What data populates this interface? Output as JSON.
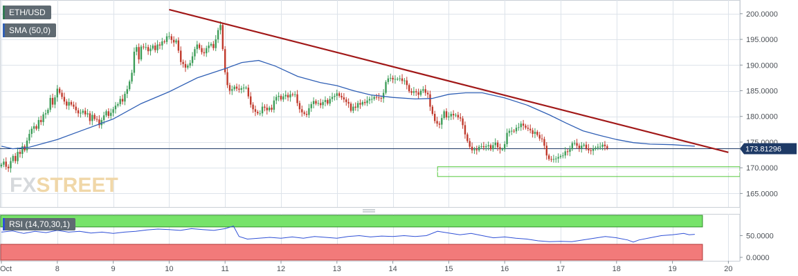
{
  "header": {
    "symbol": "ETH/USD",
    "indicator": "SMA (50,0)",
    "rsi_indicator": "RSI (14,70,30,1)",
    "watermark_fx": "FX",
    "watermark_street": "STREET"
  },
  "colors": {
    "candle_up": "#3d9d59",
    "candle_down": "#c0392b",
    "sma": "#2f5fb5",
    "trendline": "#a11818",
    "support_box": "#54c93a",
    "rsi_line": "#2e4fd6",
    "rsi_overbought": "#77e36a",
    "rsi_oversold": "#f27a7a",
    "price_line": "#1e3a66",
    "grid": "#dde3ea"
  },
  "chart_data": [
    {
      "type": "candlestick",
      "symbol": "ETH/USD",
      "x_ticks": [
        "Oct",
        "8",
        "9",
        "10",
        "11",
        "12",
        "13",
        "14",
        "15",
        "16",
        "17",
        "18",
        "19",
        "20"
      ],
      "y_ticks": [
        "165.0000",
        "170.0000",
        "175.0000",
        "180.0000",
        "185.0000",
        "190.0000",
        "195.0000",
        "200.0000"
      ],
      "ylim": [
        162.5,
        202.8
      ],
      "xlim_days": [
        7.0,
        20.0
      ],
      "current_price": 173.81296,
      "current_price_label": "173.81296",
      "sma": {
        "name": "SMA (50,0)",
        "points": [
          [
            7.0,
            174.2
          ],
          [
            7.2,
            173.7
          ],
          [
            7.5,
            174.0
          ],
          [
            8.0,
            175.5
          ],
          [
            8.5,
            177.5
          ],
          [
            9.0,
            179.5
          ],
          [
            9.5,
            182.5
          ],
          [
            10.0,
            184.8
          ],
          [
            10.5,
            187.5
          ],
          [
            11.0,
            189.3
          ],
          [
            11.3,
            190.5
          ],
          [
            11.6,
            190.9
          ],
          [
            11.9,
            189.8
          ],
          [
            12.3,
            187.8
          ],
          [
            12.7,
            186.6
          ],
          [
            13.0,
            186.0
          ],
          [
            13.3,
            185.0
          ],
          [
            13.6,
            184.2
          ],
          [
            14.0,
            183.7
          ],
          [
            14.4,
            183.4
          ],
          [
            14.7,
            183.5
          ],
          [
            15.0,
            184.3
          ],
          [
            15.3,
            184.6
          ],
          [
            15.6,
            184.6
          ],
          [
            16.0,
            183.6
          ],
          [
            16.4,
            182.2
          ],
          [
            16.8,
            180.3
          ],
          [
            17.1,
            178.7
          ],
          [
            17.4,
            177.2
          ],
          [
            17.7,
            176.3
          ],
          [
            18.0,
            175.5
          ],
          [
            18.3,
            174.9
          ],
          [
            18.6,
            174.6
          ],
          [
            19.0,
            174.5
          ],
          [
            19.4,
            174.2
          ]
        ]
      },
      "candles": {
        "start_day": 7.0,
        "step_days": 0.0416667,
        "closes": [
          170.6,
          171.2,
          170.2,
          169.9,
          171.3,
          172.3,
          171.3,
          173.1,
          172.7,
          174.2,
          173.4,
          175.3,
          176.6,
          177.6,
          178.1,
          177.6,
          179.3,
          178.9,
          180.4,
          180.6,
          181.3,
          183.6,
          182.3,
          183.7,
          185.4,
          184.6,
          183.8,
          182.9,
          182.1,
          182.8,
          182.3,
          181.9,
          181.2,
          180.6,
          180.7,
          181.1,
          180.4,
          180.6,
          179.1,
          180.3,
          179.5,
          179.4,
          178.3,
          179.3,
          180.2,
          181.0,
          180.1,
          180.7,
          181.4,
          182.1,
          182.4,
          183.4,
          182.9,
          184.4,
          185.3,
          186.8,
          188.5,
          192.6,
          193.5,
          191.1,
          193.6,
          193.5,
          193.5,
          192.7,
          193.2,
          193.8,
          192.9,
          194.0,
          193.8,
          194.6,
          194.5,
          195.6,
          195.6,
          194.9,
          194.4,
          194.8,
          192.8,
          190.6,
          190.2,
          189.5,
          189.9,
          190.4,
          191.7,
          193.1,
          194.0,
          193.3,
          192.5,
          192.3,
          193.3,
          193.8,
          194.1,
          193.3,
          195.0,
          196.8,
          197.8,
          193.1,
          188.6,
          186.1,
          185.0,
          185.3,
          185.8,
          185.4,
          185.2,
          185.5,
          185.6,
          185.6,
          183.9,
          182.3,
          181.4,
          180.9,
          180.6,
          180.6,
          181.9,
          181.7,
          181.2,
          181.7,
          181.3,
          183.1,
          183.8,
          184.0,
          183.3,
          183.9,
          184.2,
          183.7,
          184.3,
          184.2,
          184.3,
          182.6,
          181.4,
          180.8,
          180.5,
          180.3,
          181.6,
          182.4,
          183.0,
          182.5,
          182.6,
          182.2,
          182.8,
          183.2,
          182.5,
          183.4,
          183.8,
          184.0,
          184.5,
          184.0,
          183.7,
          183.3,
          182.8,
          182.5,
          181.1,
          181.9,
          181.7,
          182.6,
          182.3,
          182.8,
          182.6,
          183.1,
          183.4,
          183.4,
          183.8,
          183.7,
          183.6,
          183.5,
          184.6,
          186.7,
          187.4,
          187.5,
          187.2,
          187.3,
          187.3,
          187.4,
          186.9,
          187.0,
          186.1,
          184.9,
          184.6,
          184.9,
          184.7,
          184.2,
          185.0,
          185.3,
          184.6,
          184.3,
          181.9,
          180.5,
          179.1,
          178.6,
          178.4,
          179.7,
          181.0,
          179.8,
          180.0,
          180.5,
          180.2,
          180.3,
          179.8,
          179.6,
          178.3,
          176.5,
          175.2,
          174.1,
          173.4,
          173.6,
          173.4,
          174.1,
          174.2,
          174.0,
          174.2,
          174.4,
          173.6,
          174.4,
          174.9,
          174.0,
          173.6,
          173.6,
          174.6,
          176.8,
          177.2,
          177.2,
          177.1,
          177.8,
          177.9,
          178.6,
          178.2,
          177.8,
          177.6,
          177.3,
          176.6,
          177.0,
          176.4,
          175.7,
          175.6,
          174.3,
          172.4,
          171.7,
          171.6,
          171.7,
          171.8,
          172.1,
          172.3,
          172.4,
          173.2,
          173.1,
          173.6,
          174.8,
          174.8,
          174.3,
          173.8,
          174.3,
          174.5,
          173.8,
          173.4,
          173.3,
          173.7,
          173.9,
          174.1,
          174.1,
          174.5,
          174.2,
          173.8
        ]
      },
      "trendline": {
        "start": [
          10.0,
          200.8
        ],
        "end": [
          20.0,
          173.0
        ]
      },
      "support_zone": {
        "x_start_day": 14.8,
        "y_range": [
          168.3,
          170.2
        ]
      }
    },
    {
      "type": "line",
      "name": "RSI (14,70,30,1)",
      "y_ticks": [
        "0.0000",
        "50.0000"
      ],
      "ylim": [
        -8,
        100
      ],
      "overbought": 70,
      "oversold": 30,
      "points": [
        [
          7.0,
          58
        ],
        [
          7.2,
          61
        ],
        [
          7.4,
          55
        ],
        [
          7.6,
          60
        ],
        [
          7.8,
          57
        ],
        [
          8.0,
          62
        ],
        [
          8.2,
          58
        ],
        [
          8.4,
          60
        ],
        [
          8.6,
          56
        ],
        [
          8.8,
          58
        ],
        [
          9.0,
          55
        ],
        [
          9.2,
          58
        ],
        [
          9.4,
          60
        ],
        [
          9.6,
          63
        ],
        [
          9.8,
          65
        ],
        [
          10.0,
          64
        ],
        [
          10.2,
          62
        ],
        [
          10.4,
          66
        ],
        [
          10.6,
          64
        ],
        [
          10.8,
          62
        ],
        [
          11.0,
          66
        ],
        [
          11.15,
          72
        ],
        [
          11.25,
          48
        ],
        [
          11.4,
          42
        ],
        [
          11.6,
          44
        ],
        [
          11.8,
          46
        ],
        [
          12.0,
          44
        ],
        [
          12.2,
          47
        ],
        [
          12.4,
          44
        ],
        [
          12.6,
          48
        ],
        [
          12.8,
          46
        ],
        [
          13.0,
          44
        ],
        [
          13.2,
          48
        ],
        [
          13.4,
          50
        ],
        [
          13.6,
          47
        ],
        [
          13.8,
          49
        ],
        [
          14.0,
          48
        ],
        [
          14.2,
          50
        ],
        [
          14.4,
          48
        ],
        [
          14.6,
          50
        ],
        [
          14.8,
          60
        ],
        [
          15.0,
          56
        ],
        [
          15.2,
          52
        ],
        [
          15.4,
          55
        ],
        [
          15.6,
          50
        ],
        [
          15.8,
          45
        ],
        [
          16.0,
          47
        ],
        [
          16.2,
          44
        ],
        [
          16.4,
          42
        ],
        [
          16.6,
          38
        ],
        [
          16.8,
          36
        ],
        [
          17.0,
          37
        ],
        [
          17.2,
          36
        ],
        [
          17.4,
          40
        ],
        [
          17.6,
          44
        ],
        [
          17.8,
          48
        ],
        [
          18.0,
          45
        ],
        [
          18.2,
          40
        ],
        [
          18.3,
          35
        ],
        [
          18.4,
          40
        ],
        [
          18.6,
          45
        ],
        [
          18.8,
          50
        ],
        [
          19.0,
          52
        ],
        [
          19.2,
          55
        ],
        [
          19.3,
          52
        ],
        [
          19.4,
          53
        ]
      ]
    }
  ]
}
